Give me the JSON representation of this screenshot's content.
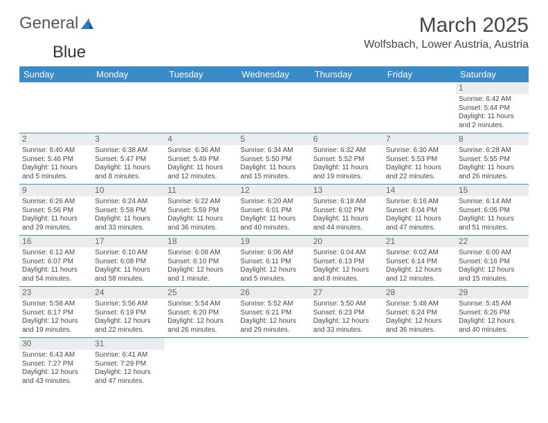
{
  "logo": {
    "word1": "General",
    "word2": "Blue"
  },
  "header": {
    "title": "March 2025",
    "location": "Wolfsbach, Lower Austria, Austria"
  },
  "colors": {
    "header_bg": "#3b8bc8",
    "header_fg": "#ffffff",
    "daynum_bg": "#ececec",
    "border": "#3b8bc8"
  },
  "daysOfWeek": [
    "Sunday",
    "Monday",
    "Tuesday",
    "Wednesday",
    "Thursday",
    "Friday",
    "Saturday"
  ],
  "weeks": [
    [
      null,
      null,
      null,
      null,
      null,
      null,
      {
        "n": "1",
        "sr": "Sunrise: 6:42 AM",
        "ss": "Sunset: 5:44 PM",
        "dl": "Daylight: 11 hours and 2 minutes."
      }
    ],
    [
      {
        "n": "2",
        "sr": "Sunrise: 6:40 AM",
        "ss": "Sunset: 5:46 PM",
        "dl": "Daylight: 11 hours and 5 minutes."
      },
      {
        "n": "3",
        "sr": "Sunrise: 6:38 AM",
        "ss": "Sunset: 5:47 PM",
        "dl": "Daylight: 11 hours and 8 minutes."
      },
      {
        "n": "4",
        "sr": "Sunrise: 6:36 AM",
        "ss": "Sunset: 5:49 PM",
        "dl": "Daylight: 11 hours and 12 minutes."
      },
      {
        "n": "5",
        "sr": "Sunrise: 6:34 AM",
        "ss": "Sunset: 5:50 PM",
        "dl": "Daylight: 11 hours and 15 minutes."
      },
      {
        "n": "6",
        "sr": "Sunrise: 6:32 AM",
        "ss": "Sunset: 5:52 PM",
        "dl": "Daylight: 11 hours and 19 minutes."
      },
      {
        "n": "7",
        "sr": "Sunrise: 6:30 AM",
        "ss": "Sunset: 5:53 PM",
        "dl": "Daylight: 11 hours and 22 minutes."
      },
      {
        "n": "8",
        "sr": "Sunrise: 6:28 AM",
        "ss": "Sunset: 5:55 PM",
        "dl": "Daylight: 11 hours and 26 minutes."
      }
    ],
    [
      {
        "n": "9",
        "sr": "Sunrise: 6:26 AM",
        "ss": "Sunset: 5:56 PM",
        "dl": "Daylight: 11 hours and 29 minutes."
      },
      {
        "n": "10",
        "sr": "Sunrise: 6:24 AM",
        "ss": "Sunset: 5:58 PM",
        "dl": "Daylight: 11 hours and 33 minutes."
      },
      {
        "n": "11",
        "sr": "Sunrise: 6:22 AM",
        "ss": "Sunset: 5:59 PM",
        "dl": "Daylight: 11 hours and 36 minutes."
      },
      {
        "n": "12",
        "sr": "Sunrise: 6:20 AM",
        "ss": "Sunset: 6:01 PM",
        "dl": "Daylight: 11 hours and 40 minutes."
      },
      {
        "n": "13",
        "sr": "Sunrise: 6:18 AM",
        "ss": "Sunset: 6:02 PM",
        "dl": "Daylight: 11 hours and 44 minutes."
      },
      {
        "n": "14",
        "sr": "Sunrise: 6:16 AM",
        "ss": "Sunset: 6:04 PM",
        "dl": "Daylight: 11 hours and 47 minutes."
      },
      {
        "n": "15",
        "sr": "Sunrise: 6:14 AM",
        "ss": "Sunset: 6:05 PM",
        "dl": "Daylight: 11 hours and 51 minutes."
      }
    ],
    [
      {
        "n": "16",
        "sr": "Sunrise: 6:12 AM",
        "ss": "Sunset: 6:07 PM",
        "dl": "Daylight: 11 hours and 54 minutes."
      },
      {
        "n": "17",
        "sr": "Sunrise: 6:10 AM",
        "ss": "Sunset: 6:08 PM",
        "dl": "Daylight: 11 hours and 58 minutes."
      },
      {
        "n": "18",
        "sr": "Sunrise: 6:08 AM",
        "ss": "Sunset: 6:10 PM",
        "dl": "Daylight: 12 hours and 1 minute."
      },
      {
        "n": "19",
        "sr": "Sunrise: 6:06 AM",
        "ss": "Sunset: 6:11 PM",
        "dl": "Daylight: 12 hours and 5 minutes."
      },
      {
        "n": "20",
        "sr": "Sunrise: 6:04 AM",
        "ss": "Sunset: 6:13 PM",
        "dl": "Daylight: 12 hours and 8 minutes."
      },
      {
        "n": "21",
        "sr": "Sunrise: 6:02 AM",
        "ss": "Sunset: 6:14 PM",
        "dl": "Daylight: 12 hours and 12 minutes."
      },
      {
        "n": "22",
        "sr": "Sunrise: 6:00 AM",
        "ss": "Sunset: 6:16 PM",
        "dl": "Daylight: 12 hours and 15 minutes."
      }
    ],
    [
      {
        "n": "23",
        "sr": "Sunrise: 5:58 AM",
        "ss": "Sunset: 6:17 PM",
        "dl": "Daylight: 12 hours and 19 minutes."
      },
      {
        "n": "24",
        "sr": "Sunrise: 5:56 AM",
        "ss": "Sunset: 6:19 PM",
        "dl": "Daylight: 12 hours and 22 minutes."
      },
      {
        "n": "25",
        "sr": "Sunrise: 5:54 AM",
        "ss": "Sunset: 6:20 PM",
        "dl": "Daylight: 12 hours and 26 minutes."
      },
      {
        "n": "26",
        "sr": "Sunrise: 5:52 AM",
        "ss": "Sunset: 6:21 PM",
        "dl": "Daylight: 12 hours and 29 minutes."
      },
      {
        "n": "27",
        "sr": "Sunrise: 5:50 AM",
        "ss": "Sunset: 6:23 PM",
        "dl": "Daylight: 12 hours and 33 minutes."
      },
      {
        "n": "28",
        "sr": "Sunrise: 5:48 AM",
        "ss": "Sunset: 6:24 PM",
        "dl": "Daylight: 12 hours and 36 minutes."
      },
      {
        "n": "29",
        "sr": "Sunrise: 5:45 AM",
        "ss": "Sunset: 6:26 PM",
        "dl": "Daylight: 12 hours and 40 minutes."
      }
    ],
    [
      {
        "n": "30",
        "sr": "Sunrise: 6:43 AM",
        "ss": "Sunset: 7:27 PM",
        "dl": "Daylight: 12 hours and 43 minutes."
      },
      {
        "n": "31",
        "sr": "Sunrise: 6:41 AM",
        "ss": "Sunset: 7:29 PM",
        "dl": "Daylight: 12 hours and 47 minutes."
      },
      null,
      null,
      null,
      null,
      null
    ]
  ]
}
